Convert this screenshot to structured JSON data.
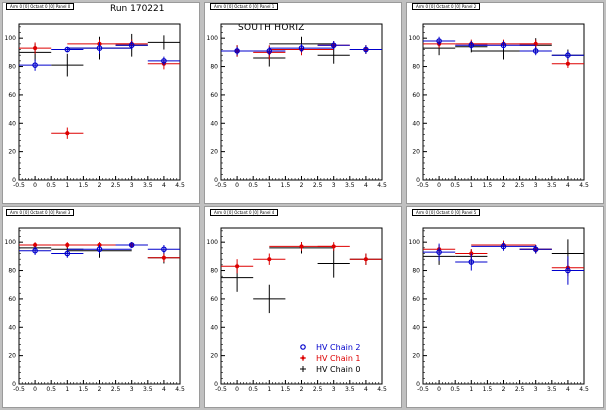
{
  "run_label": "Run 170221",
  "legend": {
    "entries": [
      {
        "label": "HV Chain 2",
        "color": "#0000cc",
        "marker": "circle"
      },
      {
        "label": "HV Chain 1",
        "color": "#dd0000",
        "marker": "star"
      },
      {
        "label": "HV Chain 0",
        "color": "#000000",
        "marker": "cross"
      }
    ]
  },
  "chart_data": [
    {
      "type": "scatter",
      "panel_title": "Arm 0 [0] Octant 0 [0] Panel 0",
      "label": "",
      "xlim": [
        -0.5,
        4.5
      ],
      "ylim": [
        0,
        110
      ],
      "x_ticks": [
        "-0.5",
        "0",
        "0.5",
        "1",
        "1.5",
        "2",
        "2.5",
        "3",
        "3.5",
        "4",
        "4.5"
      ],
      "y_ticks": [
        "0",
        "20",
        "40",
        "60",
        "80",
        "100"
      ],
      "series": [
        {
          "name": "HV Chain 2",
          "color": "#0000cc",
          "points": [
            {
              "x": 0,
              "y": 81,
              "xe": 0.5,
              "ye": 4
            },
            {
              "x": 1,
              "y": 92,
              "xe": 0.5,
              "ye": 2
            },
            {
              "x": 2,
              "y": 93,
              "xe": 1,
              "ye": 4
            },
            {
              "x": 3,
              "y": 95,
              "xe": 0.5,
              "ye": 3
            },
            {
              "x": 4,
              "y": 84,
              "xe": 0.5,
              "ye": 3
            }
          ]
        },
        {
          "name": "HV Chain 1",
          "color": "#dd0000",
          "points": [
            {
              "x": 0,
              "y": 93,
              "xe": 0.5,
              "ye": 4
            },
            {
              "x": 1,
              "y": 33,
              "xe": 0.5,
              "ye": 4
            },
            {
              "x": 2,
              "y": 96,
              "xe": 1,
              "ye": 3
            },
            {
              "x": 3,
              "y": 96,
              "xe": 0.5,
              "ye": 3
            },
            {
              "x": 4,
              "y": 82,
              "xe": 0.5,
              "ye": 4
            }
          ]
        },
        {
          "name": "HV Chain 0",
          "color": "#000000",
          "points": [
            {
              "x": 0,
              "y": 90,
              "xe": 0.5,
              "ye": 6
            },
            {
              "x": 1,
              "y": 81,
              "xe": 0.5,
              "ye": 8
            },
            {
              "x": 2,
              "y": 93,
              "xe": 1,
              "ye": 8
            },
            {
              "x": 3,
              "y": 95,
              "xe": 0.5,
              "ye": 8
            },
            {
              "x": 4,
              "y": 97,
              "xe": 0.5,
              "ye": 5
            }
          ]
        }
      ]
    },
    {
      "type": "scatter",
      "panel_title": "Arm 0 [0] Octant 0 [0] Panel 1",
      "label": "SOUTH HORIZ",
      "xlim": [
        -0.5,
        4.5
      ],
      "ylim": [
        0,
        110
      ],
      "x_ticks": [
        "-0.5",
        "0",
        "0.5",
        "1",
        "1.5",
        "2",
        "2.5",
        "3",
        "3.5",
        "4",
        "4.5"
      ],
      "y_ticks": [
        "0",
        "20",
        "40",
        "60",
        "80",
        "100"
      ],
      "series": [
        {
          "name": "HV Chain 2",
          "color": "#0000cc",
          "points": [
            {
              "x": 0,
              "y": 91,
              "xe": 0.5,
              "ye": 3
            },
            {
              "x": 1,
              "y": 91,
              "xe": 0.5,
              "ye": 3
            },
            {
              "x": 2,
              "y": 93,
              "xe": 1,
              "ye": 3
            },
            {
              "x": 3,
              "y": 95,
              "xe": 0.5,
              "ye": 3
            },
            {
              "x": 4,
              "y": 92,
              "xe": 0.5,
              "ye": 3
            }
          ]
        },
        {
          "name": "HV Chain 1",
          "color": "#dd0000",
          "points": [
            {
              "x": 0,
              "y": 91,
              "xe": 0.5,
              "ye": 4
            },
            {
              "x": 1,
              "y": 90,
              "xe": 0.5,
              "ye": 5
            },
            {
              "x": 2,
              "y": 92,
              "xe": 1,
              "ye": 4
            },
            {
              "x": 3,
              "y": 95,
              "xe": 0.5,
              "ye": 3
            },
            {
              "x": 4,
              "y": 92,
              "xe": 0.5,
              "ye": 3
            }
          ]
        },
        {
          "name": "HV Chain 0",
          "color": "#000000",
          "points": [
            {
              "x": 0,
              "y": 91,
              "xe": 0.5,
              "ye": 4
            },
            {
              "x": 1,
              "y": 86,
              "xe": 0.5,
              "ye": 6
            },
            {
              "x": 2,
              "y": 96,
              "xe": 1,
              "ye": 5
            },
            {
              "x": 3,
              "y": 88,
              "xe": 0.5,
              "ye": 6
            },
            {
              "x": 4,
              "y": 92,
              "xe": 0.5,
              "ye": 3
            }
          ]
        }
      ]
    },
    {
      "type": "scatter",
      "panel_title": "Arm 0 [0] Octant 0 [0] Panel 2",
      "label": "",
      "xlim": [
        -0.5,
        4.5
      ],
      "ylim": [
        0,
        110
      ],
      "x_ticks": [
        "-0.5",
        "0",
        "0.5",
        "1",
        "1.5",
        "2",
        "2.5",
        "3",
        "3.5",
        "4",
        "4.5"
      ],
      "y_ticks": [
        "0",
        "20",
        "40",
        "60",
        "80",
        "100"
      ],
      "series": [
        {
          "name": "HV Chain 2",
          "color": "#0000cc",
          "points": [
            {
              "x": 0,
              "y": 98,
              "xe": 0.5,
              "ye": 3
            },
            {
              "x": 1,
              "y": 95,
              "xe": 0.5,
              "ye": 3
            },
            {
              "x": 2,
              "y": 95,
              "xe": 1,
              "ye": 3
            },
            {
              "x": 3,
              "y": 91,
              "xe": 0.5,
              "ye": 3
            },
            {
              "x": 4,
              "y": 88,
              "xe": 0.5,
              "ye": 3
            }
          ]
        },
        {
          "name": "HV Chain 1",
          "color": "#dd0000",
          "points": [
            {
              "x": 0,
              "y": 96,
              "xe": 0.5,
              "ye": 3
            },
            {
              "x": 1,
              "y": 96,
              "xe": 0.5,
              "ye": 3
            },
            {
              "x": 2,
              "y": 96,
              "xe": 1,
              "ye": 3
            },
            {
              "x": 3,
              "y": 96,
              "xe": 0.5,
              "ye": 3
            },
            {
              "x": 4,
              "y": 82,
              "xe": 0.5,
              "ye": 3
            }
          ]
        },
        {
          "name": "HV Chain 0",
          "color": "#000000",
          "points": [
            {
              "x": 0,
              "y": 93,
              "xe": 0.5,
              "ye": 5
            },
            {
              "x": 1,
              "y": 94,
              "xe": 0.5,
              "ye": 4
            },
            {
              "x": 2,
              "y": 91,
              "xe": 1,
              "ye": 6
            },
            {
              "x": 3,
              "y": 95,
              "xe": 0.5,
              "ye": 5
            },
            {
              "x": 4,
              "y": 88,
              "xe": 0.5,
              "ye": 4
            }
          ]
        }
      ]
    },
    {
      "type": "scatter",
      "panel_title": "Arm 0 [0] Octant 0 [0] Panel 3",
      "label": "",
      "xlim": [
        -0.5,
        4.5
      ],
      "ylim": [
        0,
        110
      ],
      "x_ticks": [
        "-0.5",
        "0",
        "0.5",
        "1",
        "1.5",
        "2",
        "2.5",
        "3",
        "3.5",
        "4",
        "4.5"
      ],
      "y_ticks": [
        "0",
        "20",
        "40",
        "60",
        "80",
        "100"
      ],
      "series": [
        {
          "name": "HV Chain 2",
          "color": "#0000cc",
          "points": [
            {
              "x": 0,
              "y": 94,
              "xe": 0.5,
              "ye": 3
            },
            {
              "x": 1,
              "y": 92,
              "xe": 0.5,
              "ye": 3
            },
            {
              "x": 2,
              "y": 95,
              "xe": 1,
              "ye": 3
            },
            {
              "x": 3,
              "y": 98,
              "xe": 0.5,
              "ye": 2
            },
            {
              "x": 4,
              "y": 95,
              "xe": 0.5,
              "ye": 3
            }
          ]
        },
        {
          "name": "HV Chain 1",
          "color": "#dd0000",
          "points": [
            {
              "x": 0,
              "y": 98,
              "xe": 0.5,
              "ye": 2
            },
            {
              "x": 1,
              "y": 98,
              "xe": 0.5,
              "ye": 2
            },
            {
              "x": 2,
              "y": 98,
              "xe": 1,
              "ye": 2
            },
            {
              "x": 3,
              "y": 98,
              "xe": 0.5,
              "ye": 2
            },
            {
              "x": 4,
              "y": 89,
              "xe": 0.5,
              "ye": 3
            }
          ]
        },
        {
          "name": "HV Chain 0",
          "color": "#000000",
          "points": [
            {
              "x": 0,
              "y": 96,
              "xe": 0.5,
              "ye": 3
            },
            {
              "x": 1,
              "y": 95,
              "xe": 0.5,
              "ye": 3
            },
            {
              "x": 2,
              "y": 94,
              "xe": 1,
              "ye": 5
            },
            {
              "x": 3,
              "y": 98,
              "xe": 0.5,
              "ye": 2
            },
            {
              "x": 4,
              "y": 89,
              "xe": 0.5,
              "ye": 4
            }
          ]
        }
      ]
    },
    {
      "type": "scatter",
      "panel_title": "Arm 0 [0] Octant 0 [0] Panel 4",
      "label": "",
      "xlim": [
        -0.5,
        4.5
      ],
      "ylim": [
        0,
        110
      ],
      "x_ticks": [
        "-0.5",
        "0",
        "0.5",
        "1",
        "1.5",
        "2",
        "2.5",
        "3",
        "3.5",
        "4",
        "4.5"
      ],
      "y_ticks": [
        "0",
        "20",
        "40",
        "60",
        "80",
        "100"
      ],
      "show_legend": true,
      "series": [
        {
          "name": "HV Chain 1",
          "color": "#dd0000",
          "points": [
            {
              "x": 0,
              "y": 83,
              "xe": 0.5,
              "ye": 5
            },
            {
              "x": 1,
              "y": 88,
              "xe": 0.5,
              "ye": 4
            },
            {
              "x": 2,
              "y": 97,
              "xe": 1,
              "ye": 3
            },
            {
              "x": 3,
              "y": 97,
              "xe": 0.5,
              "ye": 3
            },
            {
              "x": 4,
              "y": 88,
              "xe": 0.5,
              "ye": 4
            }
          ]
        },
        {
          "name": "HV Chain 0",
          "color": "#000000",
          "points": [
            {
              "x": 0,
              "y": 75,
              "xe": 0.5,
              "ye": 10
            },
            {
              "x": 1,
              "y": 60,
              "xe": 0.5,
              "ye": 10
            },
            {
              "x": 2,
              "y": 96,
              "xe": 1,
              "ye": 4
            },
            {
              "x": 3,
              "y": 85,
              "xe": 0.5,
              "ye": 10
            },
            {
              "x": 4,
              "y": 88,
              "xe": 0.5,
              "ye": 4
            }
          ]
        }
      ]
    },
    {
      "type": "scatter",
      "panel_title": "Arm 0 [0] Octant 0 [0] Panel 5",
      "label": "",
      "xlim": [
        -0.5,
        4.5
      ],
      "ylim": [
        0,
        110
      ],
      "x_ticks": [
        "-0.5",
        "0",
        "0.5",
        "1",
        "1.5",
        "2",
        "2.5",
        "3",
        "3.5",
        "4",
        "4.5"
      ],
      "y_ticks": [
        "0",
        "20",
        "40",
        "60",
        "80",
        "100"
      ],
      "series": [
        {
          "name": "HV Chain 2",
          "color": "#0000cc",
          "points": [
            {
              "x": 0,
              "y": 93,
              "xe": 0.5,
              "ye": 6
            },
            {
              "x": 1,
              "y": 86,
              "xe": 0.5,
              "ye": 6
            },
            {
              "x": 2,
              "y": 97,
              "xe": 1,
              "ye": 3
            },
            {
              "x": 3,
              "y": 95,
              "xe": 0.5,
              "ye": 3
            },
            {
              "x": 4,
              "y": 80,
              "xe": 0.5,
              "ye": 10
            }
          ]
        },
        {
          "name": "HV Chain 1",
          "color": "#dd0000",
          "points": [
            {
              "x": 0,
              "y": 95,
              "xe": 0.5,
              "ye": 3
            },
            {
              "x": 1,
              "y": 92,
              "xe": 0.5,
              "ye": 3
            },
            {
              "x": 2,
              "y": 98,
              "xe": 1,
              "ye": 3
            },
            {
              "x": 3,
              "y": 95,
              "xe": 0.5,
              "ye": 3
            },
            {
              "x": 4,
              "y": 82,
              "xe": 0.5,
              "ye": 6
            }
          ]
        },
        {
          "name": "HV Chain 0",
          "color": "#000000",
          "points": [
            {
              "x": 0,
              "y": 90,
              "xe": 0.5,
              "ye": 6
            },
            {
              "x": 1,
              "y": 90,
              "xe": 0.5,
              "ye": 5
            },
            {
              "x": 2,
              "y": 98,
              "xe": 1,
              "ye": 3
            },
            {
              "x": 3,
              "y": 95,
              "xe": 0.5,
              "ye": 3
            },
            {
              "x": 4,
              "y": 92,
              "xe": 0.5,
              "ye": 10
            }
          ]
        }
      ]
    }
  ]
}
